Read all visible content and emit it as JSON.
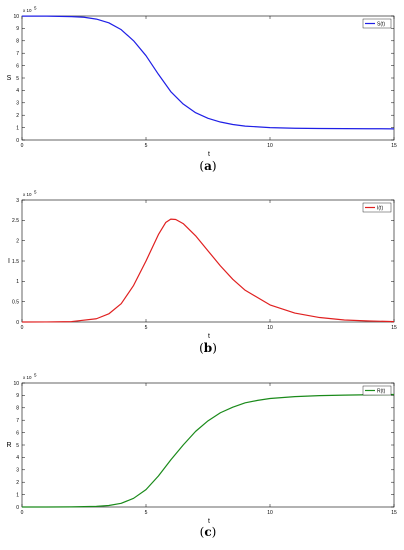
{
  "chart_data": [
    {
      "type": "line",
      "caption": "(a)",
      "xlabel": "t",
      "ylabel": "S",
      "multiplier": "x 10",
      "multiplier_exp": "5",
      "xlim": [
        0,
        15
      ],
      "ylim": [
        0,
        10
      ],
      "xticks": [
        0,
        5,
        10,
        15
      ],
      "yticks": [
        0,
        1,
        2,
        3,
        4,
        5,
        6,
        7,
        8,
        9,
        10
      ],
      "legend_position": "top-right",
      "color": "#1f1fe6",
      "series": [
        {
          "name": "S(t)",
          "x": [
            0,
            1,
            2,
            2.5,
            3,
            3.5,
            4,
            4.5,
            5,
            5.5,
            6,
            6.5,
            7,
            7.5,
            8,
            8.5,
            9,
            10,
            11,
            12,
            13,
            14,
            15
          ],
          "y": [
            9.99,
            9.99,
            9.95,
            9.9,
            9.75,
            9.45,
            8.9,
            8.0,
            6.8,
            5.3,
            3.9,
            2.9,
            2.2,
            1.75,
            1.45,
            1.25,
            1.12,
            1.0,
            0.95,
            0.93,
            0.92,
            0.91,
            0.9
          ]
        }
      ]
    },
    {
      "type": "line",
      "caption": "(b)",
      "xlabel": "t",
      "ylabel": "I",
      "multiplier": "x 10",
      "multiplier_exp": "5",
      "xlim": [
        0,
        15
      ],
      "ylim": [
        0,
        3
      ],
      "xticks": [
        0,
        5,
        10,
        15
      ],
      "yticks": [
        0,
        0.5,
        1,
        1.5,
        2,
        2.5,
        3
      ],
      "legend_position": "top-right",
      "color": "#e02020",
      "series": [
        {
          "name": "I(t)",
          "x": [
            0,
            1,
            2,
            3,
            3.5,
            4,
            4.5,
            5,
            5.5,
            5.8,
            6,
            6.2,
            6.5,
            7,
            7.5,
            8,
            8.5,
            9,
            10,
            11,
            12,
            13,
            14,
            15
          ],
          "y": [
            0.0,
            0.002,
            0.01,
            0.08,
            0.2,
            0.45,
            0.9,
            1.5,
            2.15,
            2.45,
            2.53,
            2.52,
            2.42,
            2.12,
            1.75,
            1.38,
            1.05,
            0.78,
            0.42,
            0.22,
            0.11,
            0.05,
            0.025,
            0.01
          ]
        }
      ]
    },
    {
      "type": "line",
      "caption": "(c)",
      "xlabel": "t",
      "ylabel": "R",
      "multiplier": "x 10",
      "multiplier_exp": "5",
      "xlim": [
        0,
        15
      ],
      "ylim": [
        0,
        10
      ],
      "xticks": [
        0,
        5,
        10,
        15
      ],
      "yticks": [
        0,
        1,
        2,
        3,
        4,
        5,
        6,
        7,
        8,
        9,
        10
      ],
      "legend_position": "top-right",
      "color": "#1a8a1a",
      "series": [
        {
          "name": "R(t)",
          "x": [
            0,
            1,
            2,
            3,
            3.5,
            4,
            4.5,
            5,
            5.5,
            6,
            6.5,
            7,
            7.5,
            8,
            8.5,
            9,
            9.5,
            10,
            11,
            12,
            13,
            14,
            15
          ],
          "y": [
            0.0,
            0.0,
            0.01,
            0.05,
            0.12,
            0.3,
            0.7,
            1.4,
            2.5,
            3.8,
            5.0,
            6.1,
            6.95,
            7.6,
            8.05,
            8.4,
            8.6,
            8.75,
            8.9,
            8.98,
            9.02,
            9.05,
            9.07
          ]
        }
      ]
    }
  ]
}
